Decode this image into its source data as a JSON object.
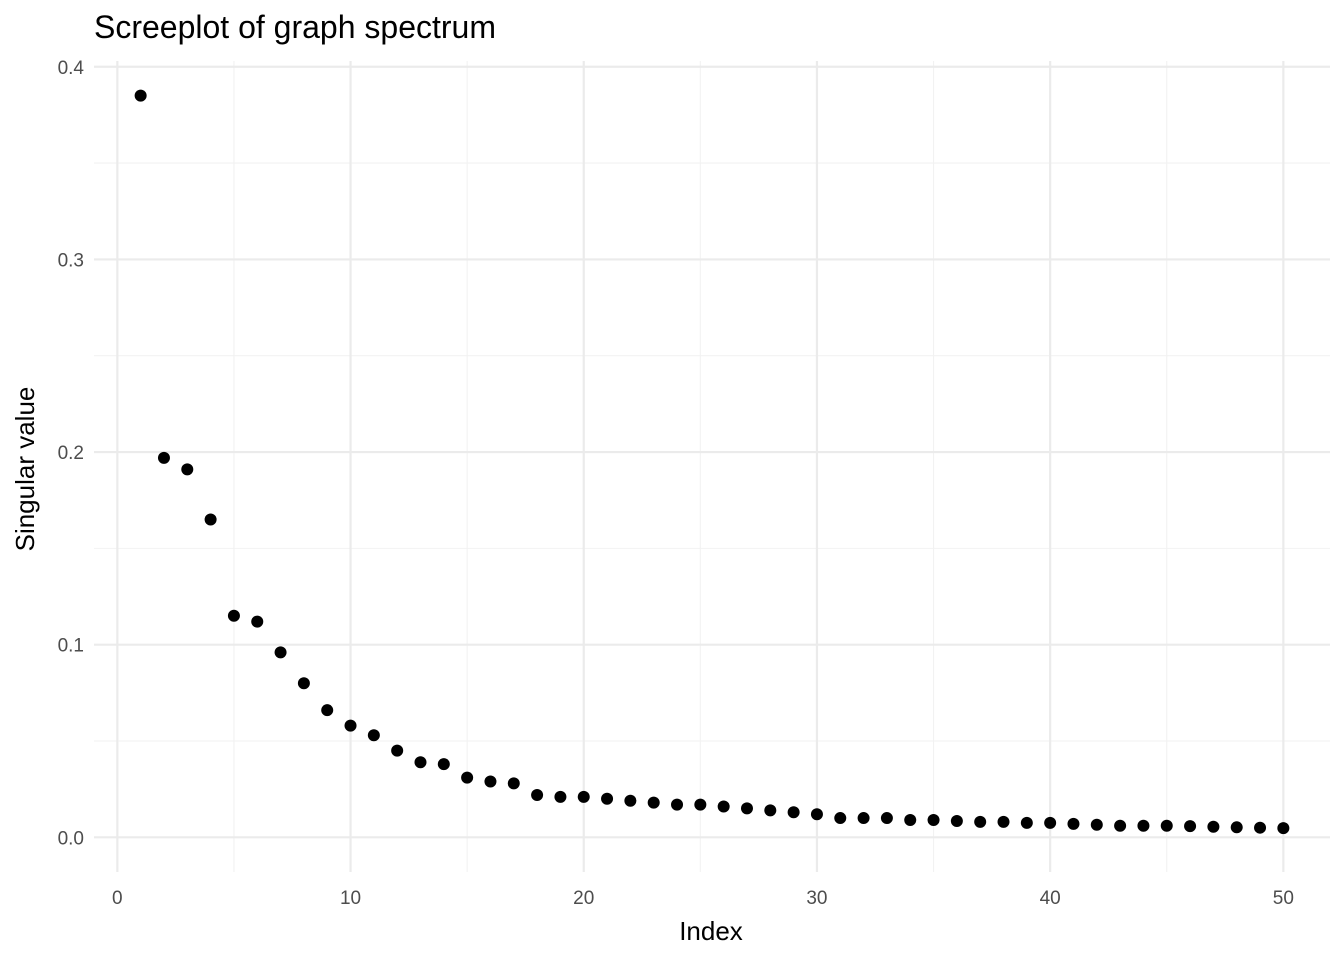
{
  "chart_data": {
    "type": "scatter",
    "title": "Screeplot of graph spectrum",
    "xlabel": "Index",
    "ylabel": "Singular value",
    "xlim": [
      -1,
      52
    ],
    "ylim": [
      -0.018,
      0.403
    ],
    "x_ticks": [
      0,
      10,
      20,
      30,
      40,
      50
    ],
    "x_tick_labels": [
      "0",
      "10",
      "20",
      "30",
      "40",
      "50"
    ],
    "x_minor_ticks": [
      5,
      15,
      25,
      35,
      45
    ],
    "y_ticks": [
      0.0,
      0.1,
      0.2,
      0.3,
      0.4
    ],
    "y_tick_labels": [
      "0.0",
      "0.1",
      "0.2",
      "0.3",
      "0.4"
    ],
    "y_minor_ticks": [
      0.05,
      0.15,
      0.25,
      0.35
    ],
    "grid": true,
    "legend": "none",
    "point_color": "#000000",
    "x": [
      1,
      2,
      3,
      4,
      5,
      6,
      7,
      8,
      9,
      10,
      11,
      12,
      13,
      14,
      15,
      16,
      17,
      18,
      19,
      20,
      21,
      22,
      23,
      24,
      25,
      26,
      27,
      28,
      29,
      30,
      31,
      32,
      33,
      34,
      35,
      36,
      37,
      38,
      39,
      40,
      41,
      42,
      43,
      44,
      45,
      46,
      47,
      48,
      49,
      50
    ],
    "y": [
      0.385,
      0.197,
      0.191,
      0.165,
      0.115,
      0.112,
      0.096,
      0.08,
      0.066,
      0.058,
      0.053,
      0.045,
      0.039,
      0.038,
      0.031,
      0.029,
      0.028,
      0.022,
      0.021,
      0.021,
      0.02,
      0.019,
      0.018,
      0.017,
      0.017,
      0.016,
      0.015,
      0.014,
      0.013,
      0.012,
      0.01,
      0.01,
      0.01,
      0.009,
      0.009,
      0.0085,
      0.008,
      0.008,
      0.0075,
      0.0075,
      0.007,
      0.0065,
      0.006,
      0.006,
      0.006,
      0.0058,
      0.0055,
      0.0052,
      0.005,
      0.0048
    ]
  }
}
